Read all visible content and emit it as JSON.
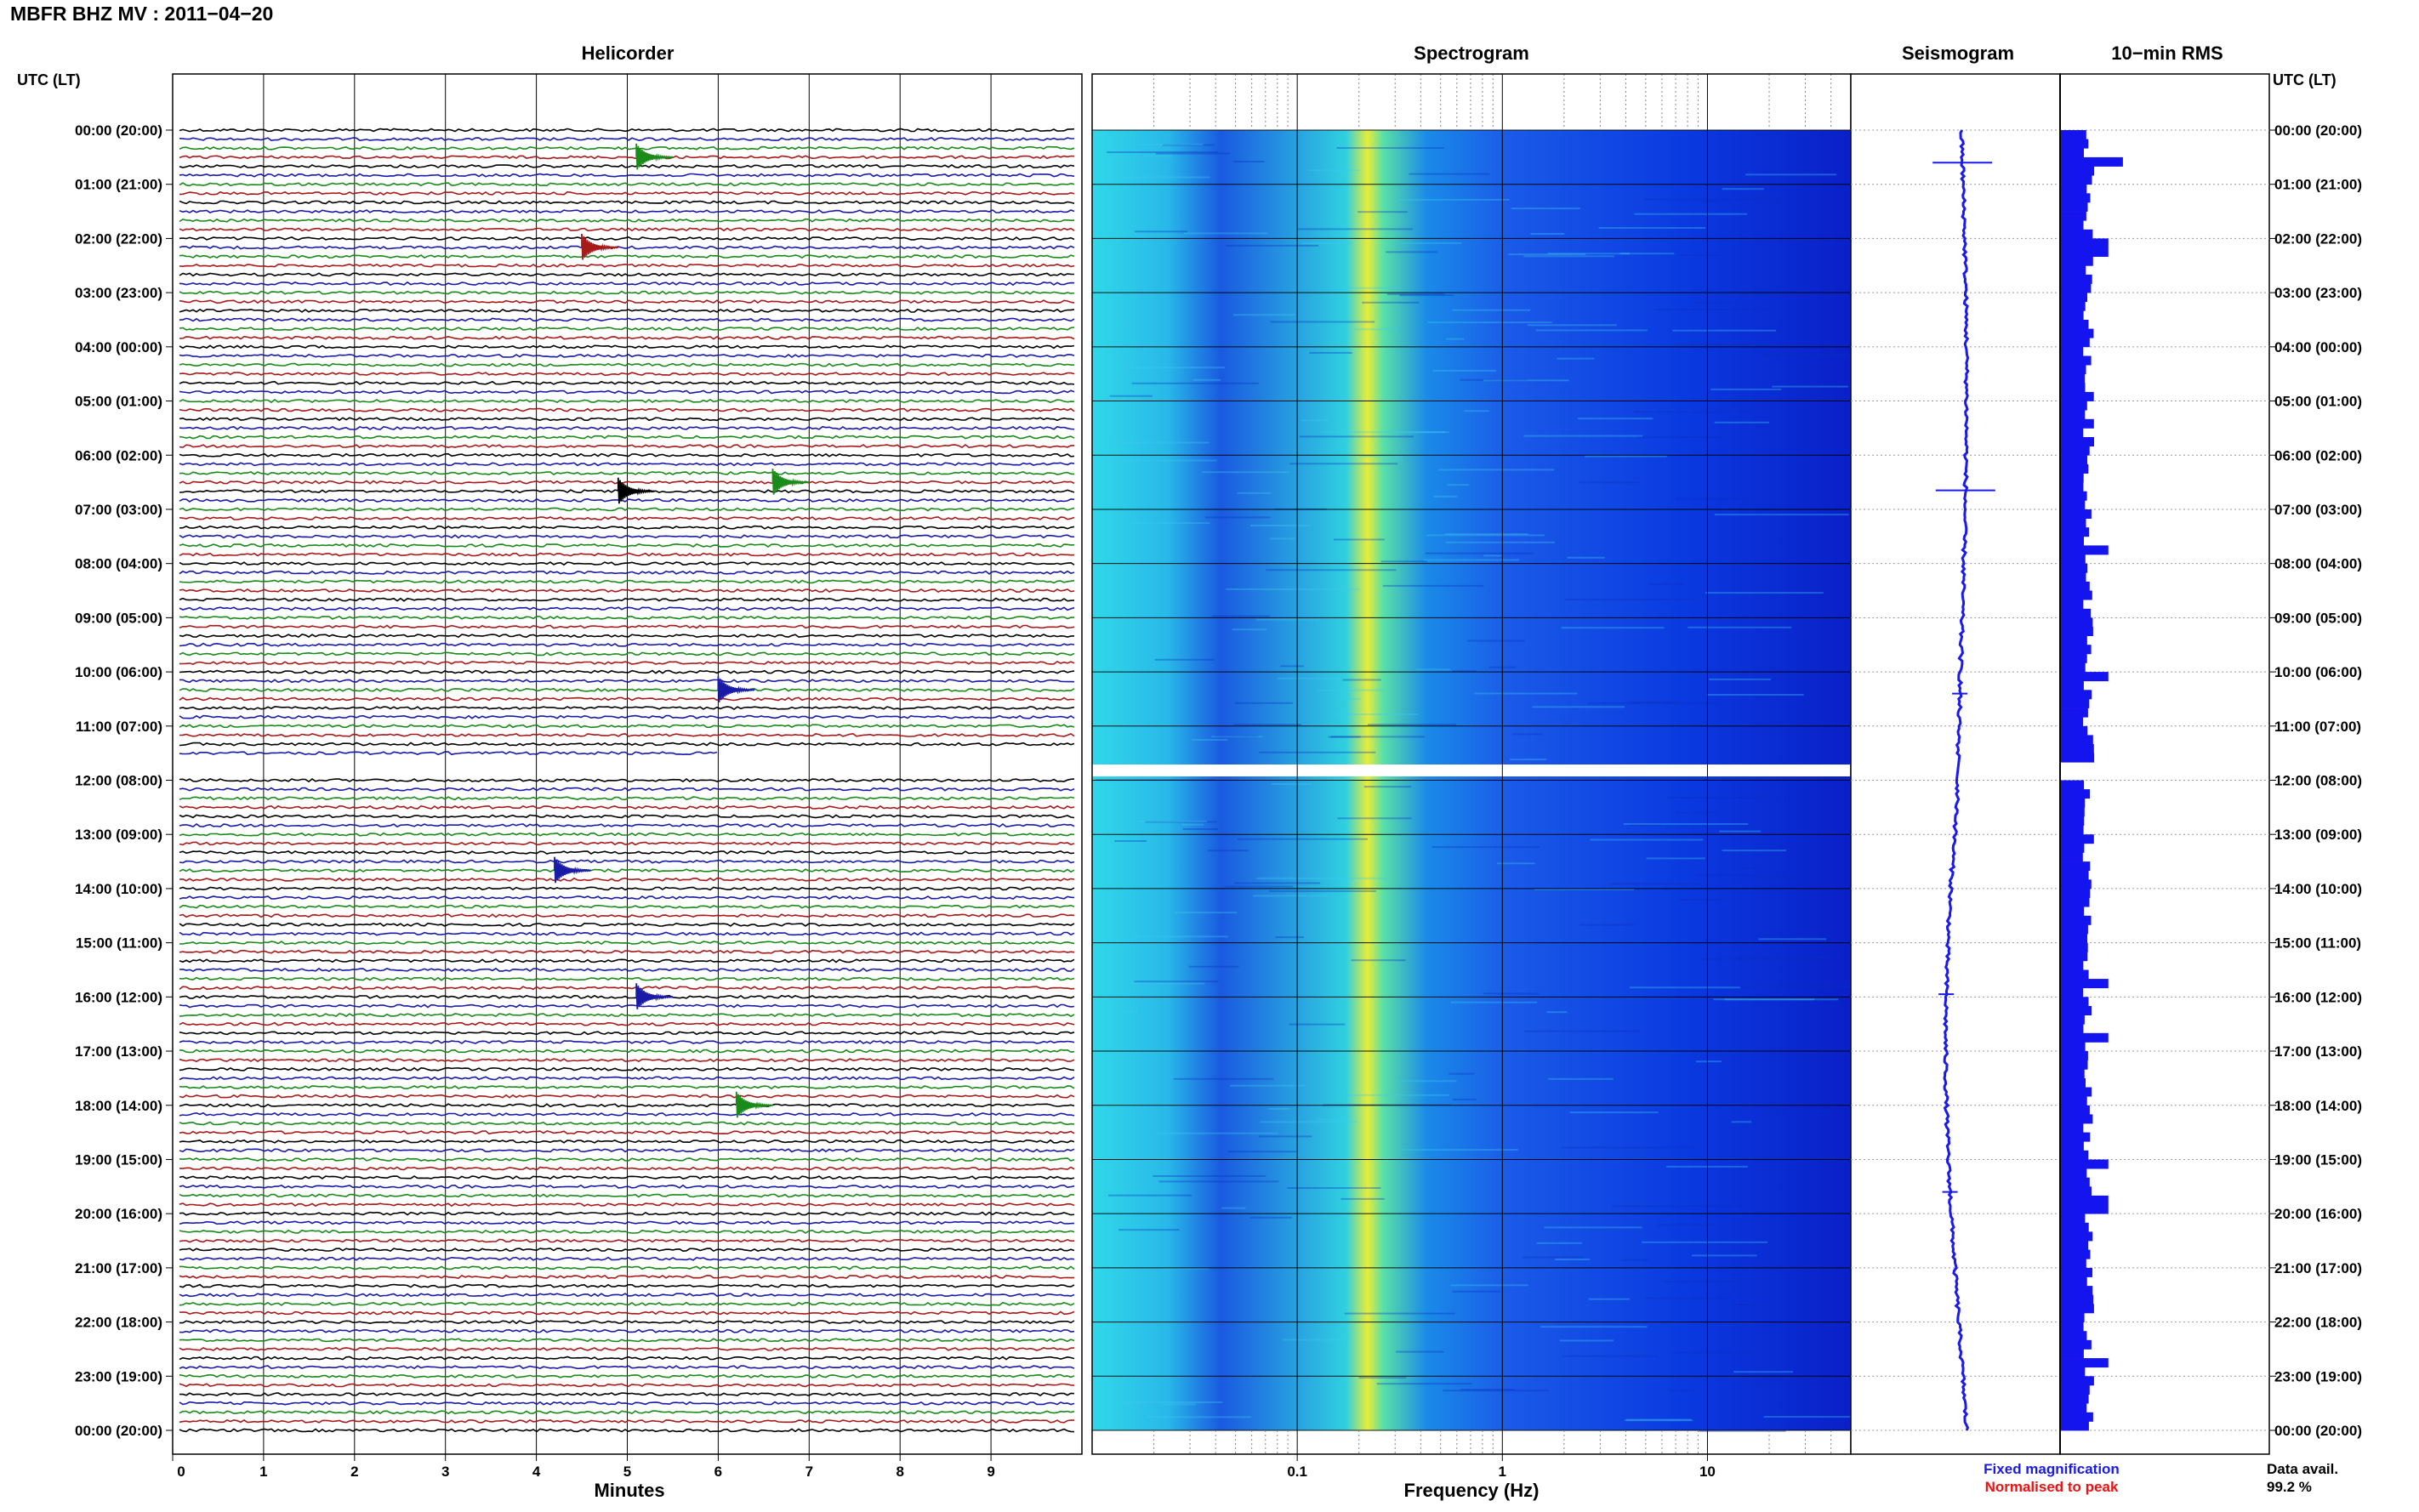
{
  "header": {
    "title": "MBFR BHZ MV : 2011−04−20"
  },
  "panels": {
    "helicorder": "Helicorder",
    "spectrogram": "Spectrogram",
    "seismogram": "Seismogram",
    "rms": "10−min RMS"
  },
  "axis_titles": {
    "left_time": "UTC (LT)",
    "right_time": "UTC (LT)",
    "minutes": "Minutes",
    "frequency": "Frequency (Hz)"
  },
  "legend": {
    "fixed": "Fixed magnification",
    "normalised": "Normalised to peak",
    "fixed_color": "#1a1aee",
    "normalised_color": "#ee1111"
  },
  "data_avail": {
    "label": "Data avail.",
    "value": "99.2 %"
  },
  "colors": {
    "trace_cycle": [
      "#000000",
      "#1a1aa8",
      "#1a8a1a",
      "#a81a1a"
    ],
    "spectrogram_low": "#0a2ad8",
    "spectrogram_peak": "#e8ec38",
    "seismogram": "#1a1aee",
    "rms_bar": "#1414ee"
  },
  "chart_data": [
    {
      "type": "line",
      "name": "helicorder",
      "x_ticks": [
        "0",
        "1",
        "2",
        "3",
        "4",
        "5",
        "6",
        "7",
        "8",
        "9"
      ],
      "xlim": [
        0,
        10
      ],
      "y_ticks": [
        "00:00 (20:00)",
        "01:00 (21:00)",
        "02:00 (22:00)",
        "03:00 (23:00)",
        "04:00 (00:00)",
        "05:00 (01:00)",
        "06:00 (02:00)",
        "07:00 (03:00)",
        "08:00 (04:00)",
        "09:00 (05:00)",
        "10:00 (06:00)",
        "11:00 (07:00)",
        "12:00 (08:00)",
        "13:00 (09:00)",
        "14:00 (10:00)",
        "15:00 (11:00)",
        "16:00 (12:00)",
        "17:00 (13:00)",
        "18:00 (14:00)",
        "19:00 (15:00)",
        "20:00 (16:00)",
        "21:00 (17:00)",
        "22:00 (18:00)",
        "23:00 (19:00)",
        "00:00 (20:00)"
      ],
      "lines": 144,
      "minutes_per_line": 10,
      "gap": {
        "start_hour": 11.6,
        "end_hour": 12.0
      },
      "events": [
        {
          "hour": 0.45,
          "minute": 5.1,
          "color_index": 2
        },
        {
          "hour": 6.45,
          "minute": 6.6,
          "color_index": 2
        },
        {
          "hour": 10.3,
          "minute": 6.0,
          "color_index": 1
        },
        {
          "hour": 15.95,
          "minute": 5.1,
          "color_index": 1
        },
        {
          "hour": 17.95,
          "minute": 6.2,
          "color_index": 2
        },
        {
          "hour": 13.6,
          "minute": 4.2,
          "color_index": 1
        },
        {
          "hour": 6.6,
          "minute": 4.9,
          "color_index": 0
        },
        {
          "hour": 2.1,
          "minute": 4.5,
          "color_index": 3
        }
      ]
    },
    {
      "type": "heatmap",
      "name": "spectrogram",
      "x_scale": "log",
      "xlim": [
        0.01,
        50
      ],
      "x_ticks": [
        "0.1",
        "1",
        "10"
      ],
      "dominant_frequency_hz": 0.22,
      "gap": {
        "start_hour": 11.6,
        "end_hour": 12.0
      }
    },
    {
      "type": "line",
      "name": "seismogram",
      "transient_spikes_hour": [
        0.6,
        6.65,
        10.4,
        15.95,
        19.6
      ]
    },
    {
      "type": "bar",
      "name": "10-min RMS",
      "orientation": "horizontal",
      "bins": 144,
      "typical_relative_level": 0.2,
      "peak_relative_level": 0.34
    }
  ]
}
